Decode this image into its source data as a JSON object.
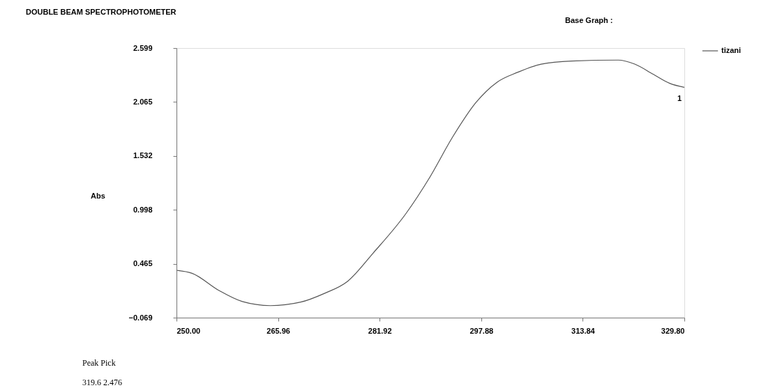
{
  "chart_data": {
    "type": "line",
    "title": "DOUBLE BEAM SPECTROPHOTOMETER",
    "ylabel": "Abs",
    "x": [
      250,
      252.45,
      256.67,
      260.35,
      264.75,
      269.52,
      273.2,
      276.87,
      280.9,
      286.04,
      289.7,
      293.4,
      297.05,
      300.35,
      303.65,
      307.3,
      312.1,
      319.4,
      322.0,
      324.9,
      327.5,
      329.8
    ],
    "series": [
      {
        "name": "tizani",
        "color": "#555555",
        "values": [
          0.4,
          0.37,
          0.2,
          0.09,
          0.05,
          0.085,
          0.17,
          0.29,
          0.57,
          0.96,
          1.31,
          1.72,
          2.06,
          2.26,
          2.36,
          2.44,
          2.47,
          2.48,
          2.44,
          2.34,
          2.25,
          2.21
        ]
      }
    ],
    "xlim": [
      250,
      329.8
    ],
    "xticks": [
      {
        "value": 250,
        "label": "250.00"
      },
      {
        "value": 265.96,
        "label": "265.96"
      },
      {
        "value": 281.92,
        "label": "281.92"
      },
      {
        "value": 297.88,
        "label": "297.88"
      },
      {
        "value": 313.84,
        "label": "313.84"
      },
      {
        "value": 329.8,
        "label": "329.80"
      }
    ],
    "ylim": [
      -0.069,
      2.599
    ],
    "yticks": [
      -0.069,
      0.465,
      0.998,
      1.532,
      2.065,
      2.599
    ],
    "grid": false,
    "legend": "top right",
    "marker": "none",
    "line_style": "solid",
    "annotations": [
      "Base Graph :",
      "Peak Pick",
      "319.6  2.476",
      "1"
    ]
  }
}
